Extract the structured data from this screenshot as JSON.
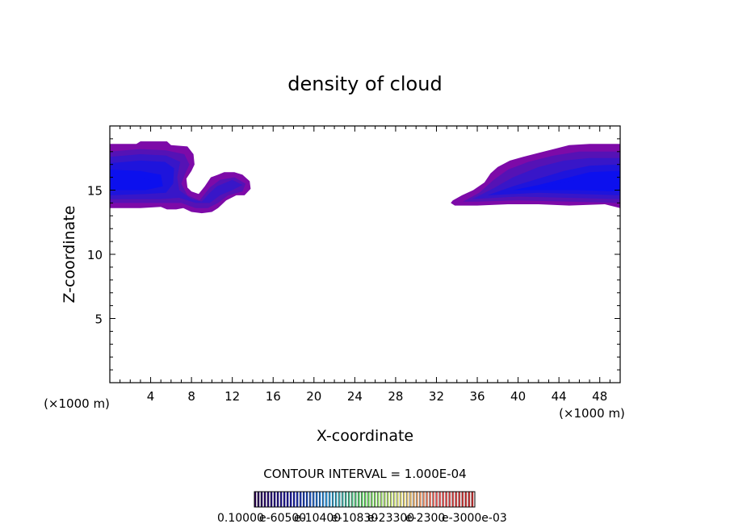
{
  "chart_data": {
    "type": "heatmap",
    "title": "density of cloud",
    "xlabel": "X-coordinate",
    "ylabel": "Z-coordinate",
    "x_unit_left": "(×1000 m)",
    "x_unit_right": "(×1000 m)",
    "xlim": [
      0,
      50
    ],
    "ylim": [
      0,
      20
    ],
    "xticks": [
      "4",
      "8",
      "12",
      "16",
      "20",
      "24",
      "28",
      "32",
      "36",
      "40",
      "44",
      "48"
    ],
    "yticks": [
      "5",
      "10",
      "15"
    ],
    "contour_interval_label": "CONTOUR INTERVAL = 1.000E-04",
    "colorbar_labels": [
      "0.10000",
      "e-60500",
      "e-10400",
      "e-10830",
      "e-23300",
      "e-2300",
      "e-3000e-03"
    ],
    "colorbar_colors": [
      "#2a0050",
      "#1a1aa0",
      "#3aa0e0",
      "#60d060",
      "#e0e080",
      "#e06060",
      "#c03030"
    ],
    "fill_colors": [
      "#7d0aa8",
      "#5512b5",
      "#3816c8",
      "#1e14dc",
      "#0c10ee"
    ],
    "regions": [
      {
        "name": "left-cloud",
        "outline": [
          [
            0,
            18.6
          ],
          [
            2.6,
            18.6
          ],
          [
            3.0,
            18.8
          ],
          [
            5.6,
            18.8
          ],
          [
            6.0,
            18.5
          ],
          [
            7.6,
            18.4
          ],
          [
            8.2,
            17.8
          ],
          [
            8.3,
            17.0
          ],
          [
            8.0,
            16.5
          ],
          [
            7.5,
            15.9
          ],
          [
            7.6,
            15.2
          ],
          [
            8.0,
            14.9
          ],
          [
            8.7,
            14.7
          ],
          [
            9.3,
            15.3
          ],
          [
            9.9,
            16.0
          ],
          [
            10.6,
            16.2
          ],
          [
            11.2,
            16.4
          ],
          [
            12.2,
            16.4
          ],
          [
            13.0,
            16.2
          ],
          [
            13.7,
            15.7
          ],
          [
            13.8,
            15.1
          ],
          [
            13.2,
            14.6
          ],
          [
            12.4,
            14.6
          ],
          [
            11.4,
            14.2
          ],
          [
            10.6,
            13.6
          ],
          [
            10.0,
            13.3
          ],
          [
            9.0,
            13.2
          ],
          [
            8.0,
            13.3
          ],
          [
            7.2,
            13.6
          ],
          [
            6.5,
            13.5
          ],
          [
            5.6,
            13.5
          ],
          [
            5.0,
            13.7
          ],
          [
            3.0,
            13.6
          ],
          [
            0,
            13.6
          ]
        ],
        "levels": [
          {
            "level": 1,
            "polygon": [
              [
                0,
                18.0
              ],
              [
                3.0,
                18.2
              ],
              [
                5.5,
                18.1
              ],
              [
                7.3,
                17.8
              ],
              [
                7.8,
                17.0
              ],
              [
                7.4,
                16.3
              ],
              [
                7.0,
                15.5
              ],
              [
                7.6,
                14.6
              ],
              [
                8.8,
                14.2
              ],
              [
                9.8,
                15.2
              ],
              [
                10.8,
                15.8
              ],
              [
                12.2,
                16.0
              ],
              [
                13.3,
                15.5
              ],
              [
                13.0,
                14.9
              ],
              [
                11.6,
                14.6
              ],
              [
                10.6,
                14.0
              ],
              [
                9.6,
                13.6
              ],
              [
                8.4,
                13.6
              ],
              [
                7.0,
                14.0
              ],
              [
                5.2,
                14.0
              ],
              [
                0,
                14.0
              ]
            ]
          },
          {
            "level": 2,
            "polygon": [
              [
                0,
                17.6
              ],
              [
                3.0,
                17.8
              ],
              [
                5.5,
                17.7
              ],
              [
                6.9,
                17.2
              ],
              [
                6.6,
                16.0
              ],
              [
                6.8,
                15.0
              ],
              [
                8.0,
                14.3
              ],
              [
                9.0,
                14.1
              ],
              [
                9.8,
                14.8
              ],
              [
                10.5,
                15.3
              ],
              [
                12.0,
                15.8
              ],
              [
                13.0,
                15.4
              ],
              [
                12.0,
                15.0
              ],
              [
                10.8,
                14.6
              ],
              [
                9.8,
                14.0
              ],
              [
                8.4,
                14.0
              ],
              [
                6.8,
                14.4
              ],
              [
                5.0,
                14.3
              ],
              [
                0,
                14.3
              ]
            ]
          },
          {
            "level": 3,
            "polygon": [
              [
                0,
                17.1
              ],
              [
                3.0,
                17.3
              ],
              [
                5.4,
                17.2
              ],
              [
                6.3,
                16.7
              ],
              [
                6.2,
                15.5
              ],
              [
                5.5,
                14.8
              ],
              [
                3.5,
                14.7
              ],
              [
                0,
                14.6
              ]
            ]
          },
          {
            "level": 4,
            "polygon": [
              [
                0,
                16.6
              ],
              [
                3.0,
                16.5
              ],
              [
                5.0,
                16.2
              ],
              [
                5.2,
                15.3
              ],
              [
                3.5,
                15.0
              ],
              [
                0,
                15.0
              ]
            ]
          },
          {
            "level": 5,
            "polygon": [
              [
                0,
                16.1
              ],
              [
                3.0,
                16.0
              ],
              [
                4.2,
                15.7
              ],
              [
                3.5,
                15.3
              ],
              [
                0,
                15.3
              ]
            ]
          }
        ]
      },
      {
        "name": "right-cloud",
        "outline": [
          [
            33.6,
            14.2
          ],
          [
            34.5,
            14.6
          ],
          [
            35.6,
            15.0
          ],
          [
            36.7,
            15.6
          ],
          [
            37.3,
            16.3
          ],
          [
            38.0,
            16.8
          ],
          [
            39.2,
            17.3
          ],
          [
            40.5,
            17.6
          ],
          [
            42.0,
            17.9
          ],
          [
            43.5,
            18.2
          ],
          [
            45.0,
            18.5
          ],
          [
            47.0,
            18.6
          ],
          [
            50,
            18.6
          ],
          [
            50,
            13.6
          ],
          [
            48.5,
            13.9
          ],
          [
            45.0,
            13.8
          ],
          [
            42.0,
            13.9
          ],
          [
            39.0,
            13.9
          ],
          [
            36.0,
            13.8
          ],
          [
            33.8,
            13.8
          ],
          [
            33.4,
            14.0
          ]
        ],
        "levels": [
          {
            "level": 1,
            "polygon": [
              [
                34.6,
                14.1
              ],
              [
                36.2,
                14.8
              ],
              [
                37.6,
                15.8
              ],
              [
                39.0,
                16.6
              ],
              [
                41.0,
                17.2
              ],
              [
                43.5,
                17.7
              ],
              [
                46.0,
                18.0
              ],
              [
                50,
                18.0
              ],
              [
                50,
                14.0
              ],
              [
                45.0,
                14.1
              ],
              [
                40.0,
                14.2
              ],
              [
                36.0,
                14.1
              ]
            ]
          },
          {
            "level": 2,
            "polygon": [
              [
                35.5,
                14.3
              ],
              [
                37.5,
                15.1
              ],
              [
                39.5,
                16.0
              ],
              [
                42.0,
                16.8
              ],
              [
                44.5,
                17.3
              ],
              [
                47.0,
                17.5
              ],
              [
                50,
                17.5
              ],
              [
                50,
                14.3
              ],
              [
                45.0,
                14.4
              ],
              [
                40.0,
                14.5
              ]
            ]
          },
          {
            "level": 3,
            "polygon": [
              [
                37.0,
                14.6
              ],
              [
                39.5,
                15.3
              ],
              [
                42.0,
                15.9
              ],
              [
                44.5,
                16.5
              ],
              [
                47.0,
                16.9
              ],
              [
                50,
                17.0
              ],
              [
                50,
                14.6
              ],
              [
                46.0,
                14.7
              ],
              [
                42.0,
                14.8
              ]
            ]
          },
          {
            "level": 4,
            "polygon": [
              [
                39.5,
                15.0
              ],
              [
                42.0,
                15.4
              ],
              [
                44.5,
                15.9
              ],
              [
                47.0,
                16.4
              ],
              [
                50,
                16.5
              ],
              [
                50,
                14.9
              ],
              [
                46.0,
                15.0
              ]
            ]
          },
          {
            "level": 5,
            "polygon": [
              [
                42.5,
                15.3
              ],
              [
                45.0,
                15.7
              ],
              [
                47.5,
                16.0
              ],
              [
                50,
                16.0
              ],
              [
                50,
                15.2
              ],
              [
                46.0,
                15.2
              ]
            ]
          }
        ]
      }
    ]
  }
}
